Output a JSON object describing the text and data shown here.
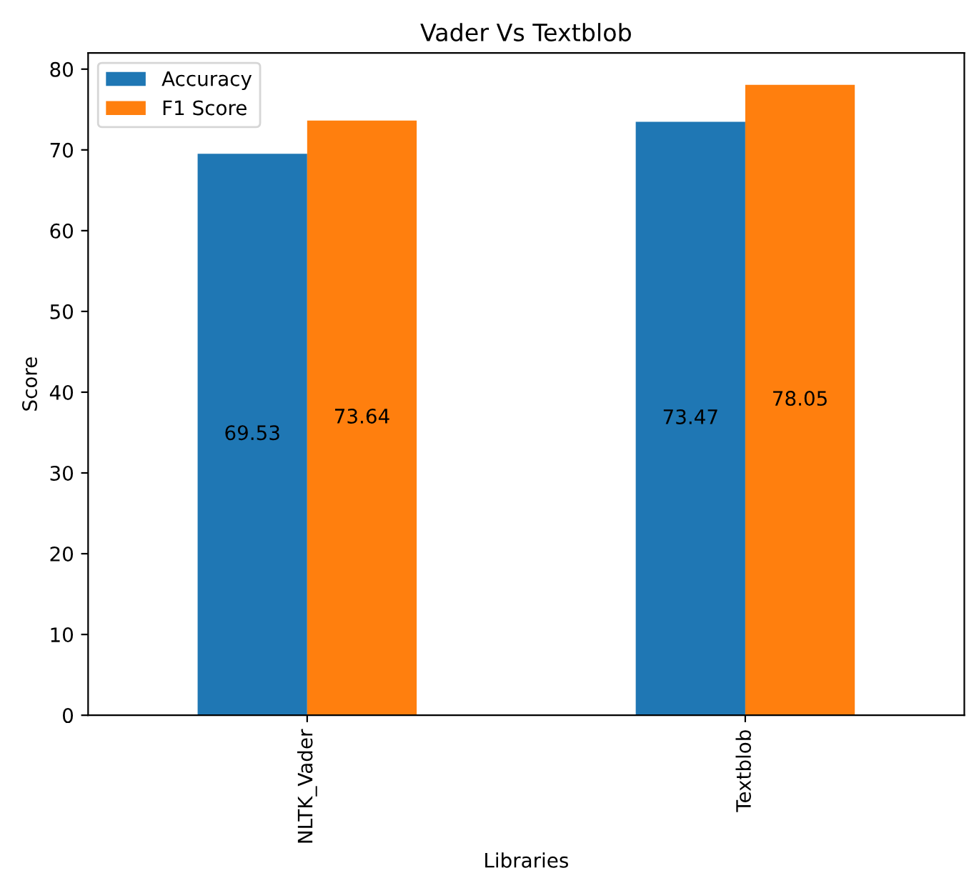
{
  "chart_data": {
    "type": "bar",
    "title": "Vader Vs Textblob",
    "xlabel": "Libraries",
    "ylabel": "Score",
    "categories": [
      "NLTK_Vader",
      "Textblob"
    ],
    "series": [
      {
        "name": "Accuracy",
        "color": "#1f77b4",
        "values": [
          69.53,
          73.47
        ]
      },
      {
        "name": "F1 Score",
        "color": "#ff7f0e",
        "values": [
          73.64,
          78.05
        ]
      }
    ],
    "ylim": [
      0,
      82
    ],
    "yticks": [
      0,
      10,
      20,
      30,
      40,
      50,
      60,
      70,
      80
    ],
    "data_labels": true,
    "legend": "top left",
    "grid": false
  }
}
